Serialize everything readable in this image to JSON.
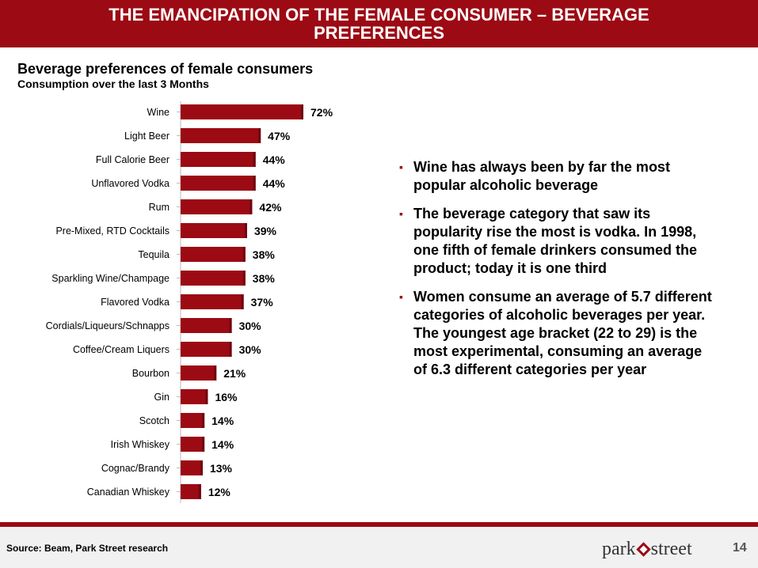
{
  "header": {
    "title_line1": "THE EMANCIPATION OF THE FEMALE CONSUMER – BEVERAGE",
    "title_line2": "PREFERENCES"
  },
  "chart_data": {
    "type": "bar",
    "orientation": "horizontal",
    "title": "Beverage preferences of female consumers",
    "subtitle": "Consumption over the last 3 Months",
    "categories": [
      "Wine",
      "Light Beer",
      "Full Calorie Beer",
      "Unflavored Vodka",
      "Rum",
      "Pre-Mixed, RTD Cocktails",
      "Tequila",
      "Sparkling Wine/Champage",
      "Flavored Vodka",
      "Cordials/Liqueurs/Schnapps",
      "Coffee/Cream Liquers",
      "Bourbon",
      "Gin",
      "Scotch",
      "Irish Whiskey",
      "Cognac/Brandy",
      "Canadian Whiskey"
    ],
    "values": [
      72,
      47,
      44,
      44,
      42,
      39,
      38,
      38,
      37,
      30,
      30,
      21,
      16,
      14,
      14,
      13,
      12
    ],
    "value_labels": [
      "72%",
      "47%",
      "44%",
      "44%",
      "42%",
      "39%",
      "38%",
      "38%",
      "37%",
      "30%",
      "30%",
      "21%",
      "16%",
      "14%",
      "14%",
      "13%",
      "12%"
    ],
    "unit": "%",
    "bar_color": "#9c0a14",
    "grid": false,
    "legend": "none"
  },
  "bullets": [
    "Wine has always been by far the most popular alcoholic beverage",
    "The beverage category that saw its popularity rise the most is vodka. In 1998, one fifth of female drinkers consumed the product; today it is one third",
    "Women consume an average of 5.7 different categories of alcoholic beverages per year. The youngest age bracket (22 to 29) is the most experimental, consuming an average of 6.3 different categories per year"
  ],
  "bullet_icon": "square-bullet-icon",
  "footer": {
    "source": "Source: Beam, Park Street research",
    "logo_left": "park",
    "logo_right": "street",
    "page_number": "14"
  },
  "colors": {
    "brand": "#9c0a14"
  }
}
